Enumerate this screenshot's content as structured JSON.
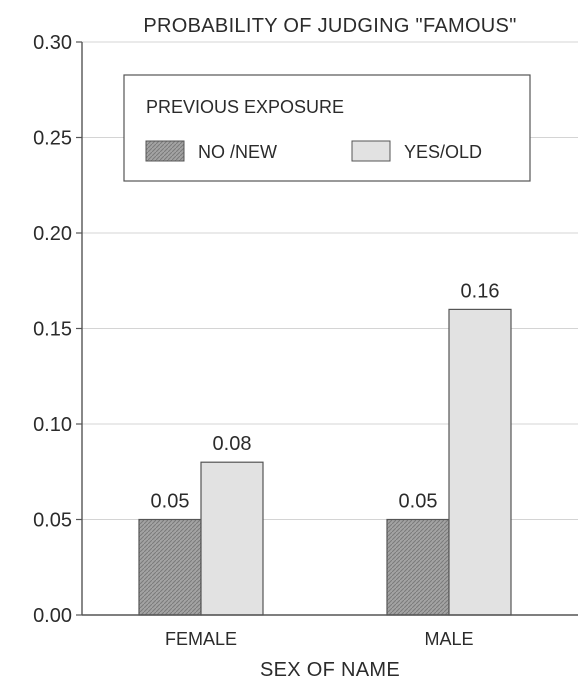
{
  "chart_data": {
    "type": "bar",
    "title": "PROBABILITY OF JUDGING \"FAMOUS\"",
    "xlabel": "SEX OF NAME",
    "ylabel": "",
    "categories": [
      "FEMALE",
      "MALE"
    ],
    "series": [
      {
        "name": "NO /NEW",
        "values": [
          0.05,
          0.05
        ],
        "labels": [
          "0.05",
          "0.05"
        ],
        "fill": "#9a9a9a"
      },
      {
        "name": "YES/OLD",
        "values": [
          0.08,
          0.16
        ],
        "labels": [
          "0.08",
          "0.16"
        ],
        "fill": "#e2e2e2"
      }
    ],
    "ylim": [
      0,
      0.3
    ],
    "yticks": [
      0.0,
      0.05,
      0.1,
      0.15,
      0.2,
      0.25,
      0.3
    ],
    "ytick_labels": [
      "0.00",
      "0.05",
      "0.10",
      "0.15",
      "0.20",
      "0.25",
      "0.30"
    ],
    "grid": true,
    "legend": {
      "title": "PREVIOUS EXPOSURE",
      "position": "top-center"
    },
    "colors": {
      "axis": "#555555",
      "grid": "#d4d4d4",
      "text": "#2b2b2b"
    }
  }
}
